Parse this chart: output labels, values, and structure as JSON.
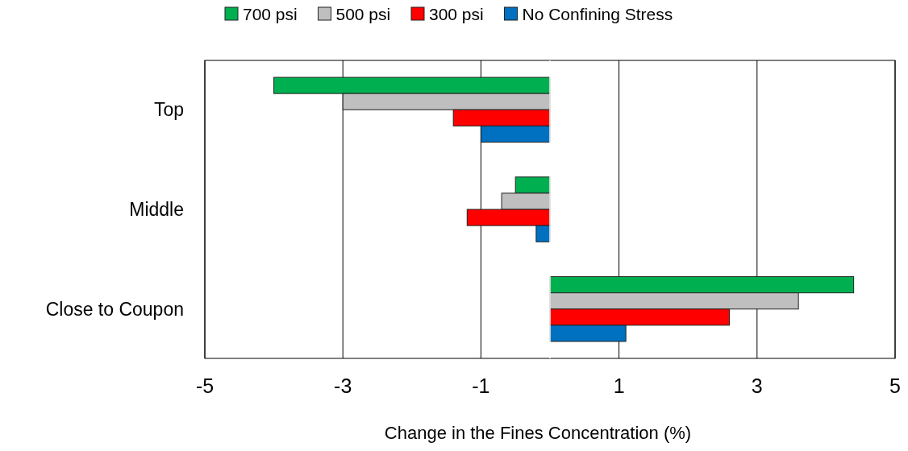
{
  "chart_data": {
    "type": "bar",
    "orientation": "horizontal",
    "xlabel": "Change in the Fines Concentration (%)",
    "categories": [
      "Top",
      "Middle",
      "Close to Coupon"
    ],
    "series": [
      {
        "name": "700 psi",
        "color": "#00b050",
        "values": [
          -4.0,
          -0.5,
          4.4
        ]
      },
      {
        "name": "500 psi",
        "color": "#bfbfbf",
        "values": [
          -3.0,
          -0.7,
          3.6
        ]
      },
      {
        "name": "300 psi",
        "color": "#ff0000",
        "values": [
          -1.4,
          -1.2,
          2.6
        ]
      },
      {
        "name": "No Confining Stress",
        "color": "#0070c0",
        "values": [
          -1.0,
          -0.2,
          1.1
        ]
      }
    ],
    "xlim": [
      -5,
      5
    ],
    "xticks": [
      -5,
      -3,
      -1,
      1,
      3,
      5
    ],
    "grid": "x",
    "legend": "top"
  }
}
